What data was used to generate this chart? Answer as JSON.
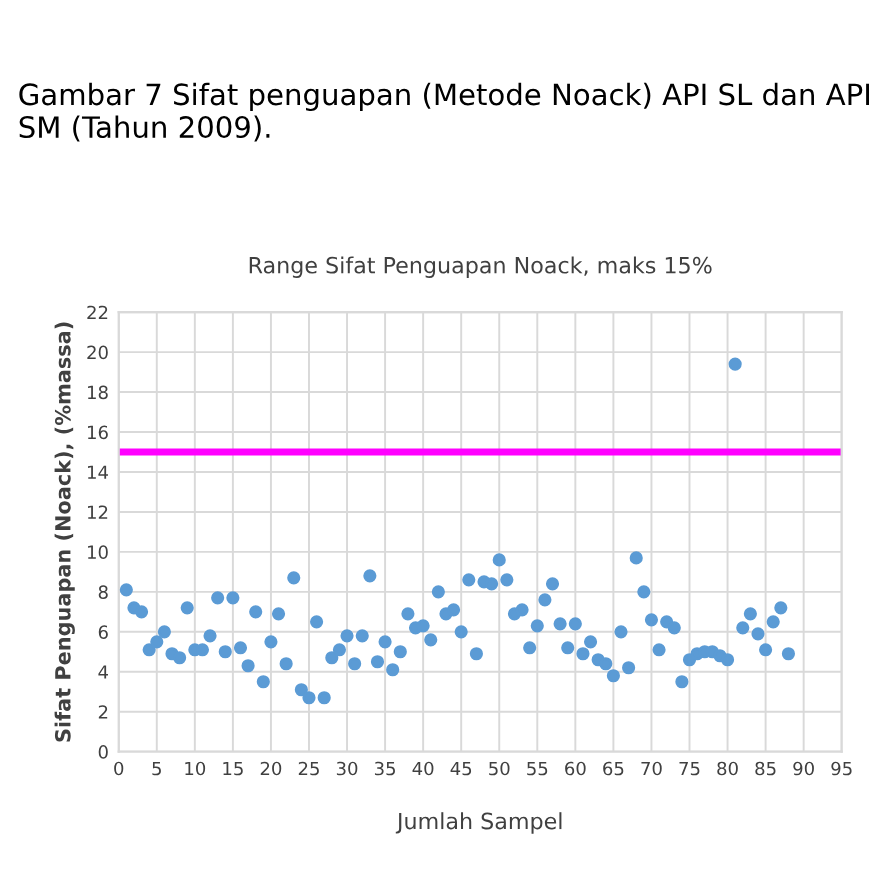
{
  "chart_data": {
    "type": "scatter",
    "title": "Range Sifat Penguapan Noack, maks 15%",
    "xlabel": "Jumlah Sampel",
    "ylabel": "Sifat Penguapan (Noack), (%massa)",
    "annotations": [
      "Gambar 7 Sifat penguapan (Metode Noack) API SL dan API SM (Tahun 2009)."
    ],
    "x": [
      1,
      2,
      3,
      4,
      5,
      6,
      7,
      8,
      9,
      10,
      11,
      12,
      13,
      14,
      15,
      16,
      17,
      18,
      19,
      20,
      21,
      22,
      23,
      24,
      25,
      26,
      27,
      28,
      29,
      30,
      31,
      32,
      33,
      34,
      35,
      36,
      37,
      38,
      39,
      40,
      41,
      42,
      43,
      44,
      45,
      46,
      47,
      48,
      49,
      50,
      51,
      52,
      53,
      54,
      55,
      56,
      57,
      58,
      59,
      60,
      61,
      62,
      63,
      64,
      65,
      66,
      67,
      68,
      69,
      70,
      71,
      72,
      73,
      74,
      75,
      76,
      77,
      78,
      79,
      80,
      81,
      82,
      83,
      84,
      85,
      86,
      87,
      88
    ],
    "series": [
      {
        "color": "#5b9bd5",
        "values": [
          8.1,
          7.2,
          7.0,
          5.1,
          5.5,
          6.0,
          4.9,
          4.7,
          7.2,
          5.1,
          5.1,
          5.8,
          7.7,
          5.0,
          7.7,
          5.2,
          4.3,
          7.0,
          3.5,
          5.5,
          6.9,
          4.4,
          8.7,
          3.1,
          2.7,
          6.5,
          2.7,
          4.7,
          5.1,
          5.8,
          4.4,
          5.8,
          8.8,
          4.5,
          5.5,
          4.1,
          5.0,
          6.9,
          6.2,
          6.3,
          5.6,
          8.0,
          6.9,
          7.1,
          6.0,
          8.6,
          4.9,
          8.5,
          8.4,
          9.6,
          8.6,
          6.9,
          7.1,
          5.2,
          6.3,
          7.6,
          8.4,
          6.4,
          5.2,
          6.4,
          4.9,
          5.5,
          4.6,
          4.4,
          3.8,
          6.0,
          4.2,
          9.7,
          8.0,
          6.6,
          5.1,
          6.5,
          6.2,
          3.5,
          4.6,
          4.9,
          5.0,
          5.0,
          4.8,
          4.6,
          19.4,
          6.2,
          6.9,
          5.9,
          5.1,
          6.5,
          7.2,
          4.9
        ]
      }
    ],
    "xlim": [
      0,
      95
    ],
    "xticks": [
      0,
      5,
      10,
      15,
      20,
      25,
      30,
      35,
      40,
      45,
      50,
      55,
      60,
      65,
      70,
      75,
      80,
      85,
      90,
      95
    ],
    "ylim": [
      0,
      22
    ],
    "yticks": [
      0,
      2,
      4,
      6,
      8,
      10,
      12,
      14,
      16,
      18,
      20,
      22
    ],
    "grid": true,
    "marker": "circle",
    "ref_lines": [
      {
        "axis": "y",
        "value": 15,
        "color": "#ff00ff"
      }
    ]
  }
}
